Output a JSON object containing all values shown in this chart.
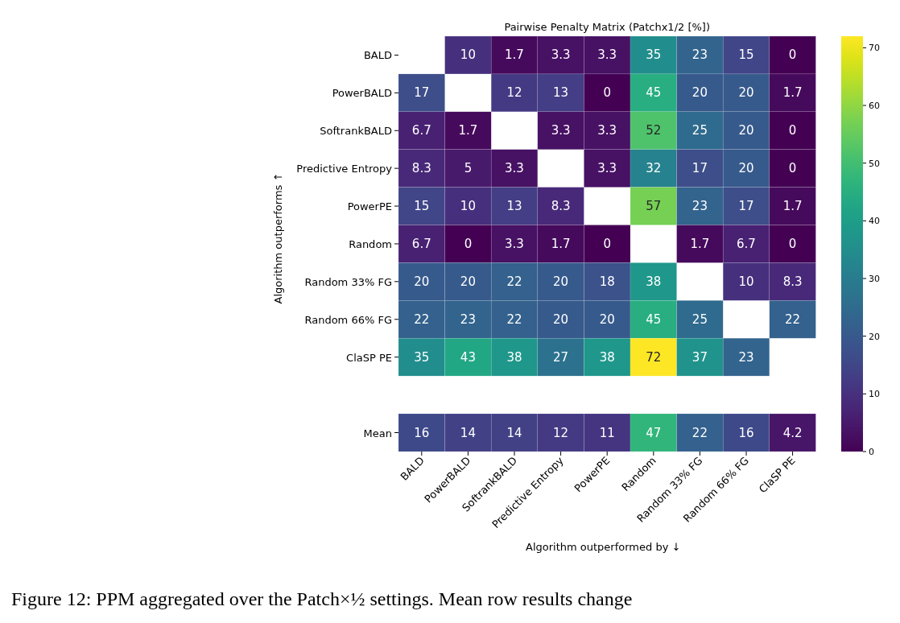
{
  "chart_data": [
    {
      "type": "heatmap",
      "title": "Pairwise Penalty Matrix (Patchx1/2 [%])",
      "ylabel": "Algorithm outperforms ↑",
      "categories": [
        null,
        null,
        null,
        null,
        null,
        null,
        null,
        null,
        null
      ],
      "y_categories": [
        "BALD",
        "PowerBALD",
        "SoftrankBALD",
        "Predictive Entropy",
        "PowerPE",
        "Random",
        "Random 33% FG",
        "Random 66% FG",
        "ClaSP PE"
      ],
      "cells": [
        [
          null,
          10,
          1.7,
          3.3,
          3.3,
          35,
          23,
          15,
          0
        ],
        [
          17,
          null,
          12,
          13,
          0,
          45,
          20,
          20,
          1.7
        ],
        [
          6.7,
          1.7,
          null,
          3.3,
          3.3,
          52,
          25,
          20,
          0
        ],
        [
          8.3,
          5,
          3.3,
          null,
          3.3,
          32,
          17,
          20,
          0
        ],
        [
          15,
          10,
          13,
          8.3,
          null,
          57,
          23,
          17,
          1.7
        ],
        [
          6.7,
          0,
          3.3,
          1.7,
          0,
          null,
          1.7,
          6.7,
          0
        ],
        [
          20,
          20,
          22,
          20,
          18,
          38,
          null,
          10,
          8.3
        ],
        [
          22,
          23,
          22,
          20,
          20,
          45,
          25,
          null,
          22
        ],
        [
          35,
          43,
          38,
          27,
          38,
          72,
          37,
          23,
          null
        ]
      ],
      "clim": [
        0,
        72
      ],
      "cticks": [
        0,
        10,
        20,
        30,
        40,
        50,
        60,
        70
      ],
      "data_labels": true
    },
    {
      "type": "heatmap",
      "xlabel": "Algorithm outperformed by ↓",
      "categories": [
        "BALD",
        "PowerBALD",
        "SoftrankBALD",
        "Predictive Entropy",
        "PowerPE",
        "Random",
        "Random 33% FG",
        "Random 66% FG",
        "ClaSP PE"
      ],
      "y_categories": [
        "Mean"
      ],
      "cells": [
        [
          16,
          14,
          14,
          12,
          11,
          47,
          22,
          16,
          4.2
        ]
      ],
      "data_labels": true,
      "annotations": [
        "Figure 12: PPM aggregated over the Patch×½ settings. Mean row results change"
      ]
    }
  ]
}
